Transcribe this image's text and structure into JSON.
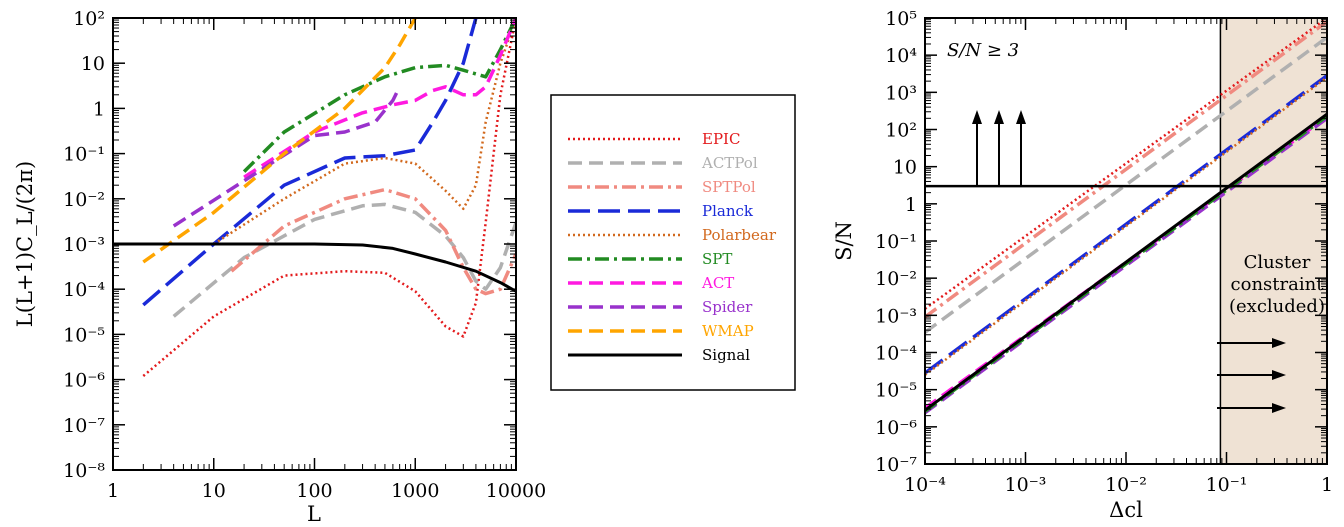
{
  "colors": {
    "EPIC": "#e31a1c",
    "ACTPol": "#b0b0b0",
    "SPTPol": "#f08a80",
    "Planck": "#1a2ad8",
    "Polarbear": "#d2691e",
    "SPT": "#228b22",
    "ACT": "#ff1ae0",
    "Spider": "#9932cc",
    "WMAP": "#ffa500",
    "Signal": "#000000",
    "shade": "#efe2d4"
  },
  "chart_data": [
    {
      "type": "line",
      "xscale": "log",
      "yscale": "log",
      "xlim": [
        1,
        10000
      ],
      "ylim": [
        1e-08,
        100
      ],
      "xlabel": "L",
      "ylabel": "L(L+1)C_L/(2π)",
      "xticks": [
        "1",
        "10",
        "100",
        "1000",
        "10000"
      ],
      "yticks": [
        "10⁻⁸",
        "10⁻⁷",
        "10⁻⁶",
        "10⁻⁵",
        "10⁻⁴",
        "10⁻³",
        "10⁻²",
        "10⁻¹",
        "1",
        "10",
        "10²"
      ],
      "series": [
        {
          "name": "EPIC",
          "style": "dotted",
          "x": [
            2,
            10,
            50,
            200,
            500,
            1000,
            2000,
            3000,
            4000,
            5000,
            7000,
            10000
          ],
          "y": [
            1.2e-06,
            2.5e-05,
            0.0002,
            0.00025,
            0.00023,
            9e-05,
            1.5e-05,
            9e-06,
            5e-05,
            0.003,
            2,
            100
          ]
        },
        {
          "name": "ACTPol",
          "style": "dashed",
          "x": [
            4,
            20,
            100,
            300,
            500,
            1000,
            2000,
            3000,
            4000,
            5000,
            7000,
            10000
          ],
          "y": [
            2.5e-05,
            0.0005,
            0.0035,
            0.007,
            0.0075,
            0.005,
            0.0015,
            0.0005,
            0.00015,
            0.0001,
            0.0003,
            0.003
          ]
        },
        {
          "name": "SPTPol",
          "style": "dashdot",
          "x": [
            15,
            50,
            200,
            500,
            1000,
            2000,
            3000,
            4000,
            5000,
            7000,
            10000
          ],
          "y": [
            0.00025,
            0.0025,
            0.01,
            0.016,
            0.01,
            0.002,
            0.0003,
            0.0001,
            8e-05,
            0.0001,
            0.0006
          ]
        },
        {
          "name": "Planck",
          "style": "longdash",
          "x": [
            2,
            10,
            50,
            200,
            500,
            1000,
            1500,
            2000,
            3000,
            4000
          ],
          "y": [
            4.5e-05,
            0.001,
            0.02,
            0.08,
            0.09,
            0.12,
            0.5,
            1.5,
            10,
            100
          ]
        },
        {
          "name": "Polarbear",
          "style": "dotted",
          "x": [
            10,
            50,
            200,
            500,
            1000,
            2000,
            3000,
            4000,
            5000,
            7000,
            10000
          ],
          "y": [
            0.001,
            0.01,
            0.06,
            0.08,
            0.06,
            0.015,
            0.006,
            0.02,
            0.5,
            10,
            100
          ]
        },
        {
          "name": "SPT",
          "style": "dashdot",
          "x": [
            20,
            50,
            200,
            500,
            1000,
            2000,
            3000,
            5000,
            7000,
            10000
          ],
          "y": [
            0.04,
            0.3,
            2,
            5,
            8,
            9,
            7,
            5,
            20,
            100
          ]
        },
        {
          "name": "ACT",
          "style": "dashed",
          "x": [
            20,
            100,
            300,
            600,
            1000,
            1500,
            2000,
            3000,
            4000,
            5000,
            7000,
            10000
          ],
          "y": [
            0.03,
            0.3,
            0.8,
            1.2,
            1.5,
            2.5,
            3,
            2,
            2,
            3,
            15,
            100
          ]
        },
        {
          "name": "Spider",
          "style": "dashed",
          "x": [
            4,
            20,
            100,
            200,
            400,
            600,
            700
          ],
          "y": [
            0.0025,
            0.025,
            0.25,
            0.3,
            0.5,
            1.5,
            3
          ]
        },
        {
          "name": "WMAP",
          "style": "dashed",
          "x": [
            2,
            10,
            50,
            200,
            500,
            700,
            1000,
            1200
          ],
          "y": [
            0.0004,
            0.005,
            0.1,
            1,
            8,
            25,
            100,
            200
          ]
        },
        {
          "name": "Signal",
          "style": "solid",
          "x": [
            1,
            10,
            100,
            300,
            600,
            1000,
            2000,
            4000,
            7000,
            10000
          ],
          "y": [
            0.001,
            0.001,
            0.001,
            0.00095,
            0.0008,
            0.0006,
            0.0004,
            0.00025,
            0.00014,
            9e-05
          ]
        }
      ]
    },
    {
      "type": "line",
      "xscale": "log",
      "yscale": "log",
      "xlim": [
        0.0001,
        1
      ],
      "ylim": [
        1e-07,
        100000
      ],
      "xlabel": "Δcl",
      "ylabel": "S/N",
      "xticks": [
        "10⁻⁴",
        "10⁻³",
        "10⁻²",
        "10⁻¹",
        "1"
      ],
      "yticks": [
        "10⁻⁷",
        "10⁻⁶",
        "10⁻⁵",
        "10⁻⁴",
        "10⁻³",
        "10⁻²",
        "10⁻¹",
        "1",
        "10",
        "10²",
        "10³",
        "10⁴",
        "10⁵"
      ],
      "threshold": 3,
      "threshold_label": "S/N ≥ 3",
      "excluded_from": 0.087,
      "excluded_label": [
        "Cluster",
        "constraint",
        "(excluded)"
      ],
      "series": [
        {
          "name": "EPIC",
          "style": "dotted",
          "x": [
            0.0001,
            1
          ],
          "y": [
            0.0015,
            100000
          ]
        },
        {
          "name": "SPTPol",
          "style": "dashdot",
          "x": [
            0.0001,
            1
          ],
          "y": [
            0.0009,
            80000
          ]
        },
        {
          "name": "ACTPol",
          "style": "dashed",
          "x": [
            0.0001,
            1
          ],
          "y": [
            0.00035,
            30000
          ]
        },
        {
          "name": "Planck",
          "style": "longdash",
          "x": [
            0.0001,
            1
          ],
          "y": [
            2.8e-05,
            2800
          ]
        },
        {
          "name": "Polarbear",
          "style": "dotted",
          "x": [
            0.0001,
            1
          ],
          "y": [
            2.5e-05,
            2500
          ]
        },
        {
          "name": "ACT",
          "style": "dashed",
          "x": [
            0.0001,
            1
          ],
          "y": [
            3.2e-06,
            220
          ]
        },
        {
          "name": "Spider",
          "style": "dashed",
          "x": [
            0.0001,
            1
          ],
          "y": [
            2.4e-06,
            200
          ]
        },
        {
          "name": "SPT",
          "style": "dashdot",
          "x": [
            0.0001,
            1
          ],
          "y": [
            2.6e-06,
            230
          ]
        },
        {
          "name": "Signal",
          "style": "solid",
          "x": [
            0.0001,
            1
          ],
          "y": [
            2.8e-06,
            260
          ]
        }
      ]
    }
  ],
  "legend": {
    "entries": [
      "EPIC",
      "ACTPol",
      "SPTPol",
      "Planck",
      "Polarbear",
      "SPT",
      "ACT",
      "Spider",
      "WMAP",
      "Signal"
    ]
  }
}
